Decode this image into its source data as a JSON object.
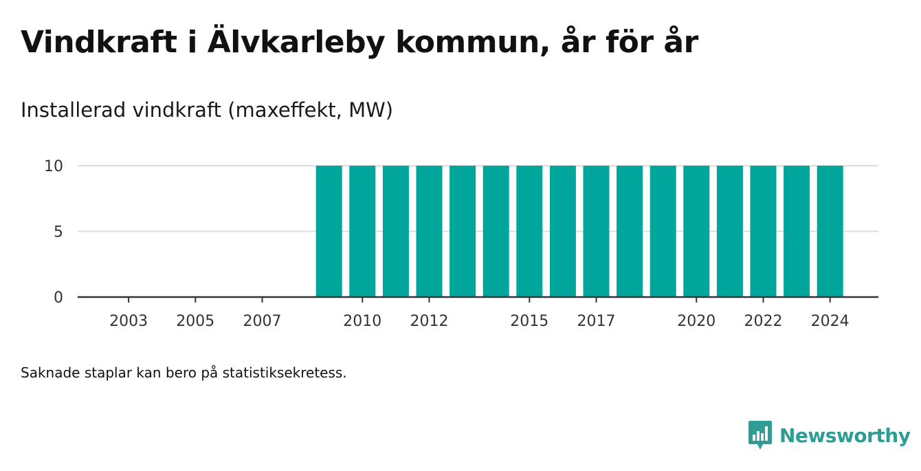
{
  "title": "Vindkraft i Älvkarleby kommun, år för år",
  "subtitle": "Installerad vindkraft (maxeffekt, MW)",
  "note": "Saknade staplar kan bero på statistiksekretess.",
  "brand": {
    "name": "Newsworthy",
    "icon": "newsworthy-logo-icon",
    "color": "#2f9d94"
  },
  "colors": {
    "bar": "#00a59b",
    "grid": "#dddddd",
    "axis": "#333333"
  },
  "chart_data": {
    "type": "bar",
    "categories": [
      "2002",
      "2003",
      "2004",
      "2005",
      "2006",
      "2007",
      "2008",
      "2009",
      "2010",
      "2011",
      "2012",
      "2013",
      "2014",
      "2015",
      "2016",
      "2017",
      "2018",
      "2019",
      "2020",
      "2021",
      "2022",
      "2023",
      "2024"
    ],
    "values": [
      0,
      0,
      0,
      0,
      0,
      0,
      0,
      10,
      10,
      10,
      10,
      10,
      10,
      10,
      10,
      10,
      10,
      10,
      10,
      10,
      10,
      10,
      10
    ],
    "xticks": [
      "2003",
      "2005",
      "2007",
      "2010",
      "2012",
      "2015",
      "2017",
      "2020",
      "2022",
      "2024"
    ],
    "yticks": [
      0,
      5,
      10
    ],
    "ylim": [
      0,
      10
    ],
    "grid": true,
    "xlabel": "",
    "ylabel": ""
  }
}
